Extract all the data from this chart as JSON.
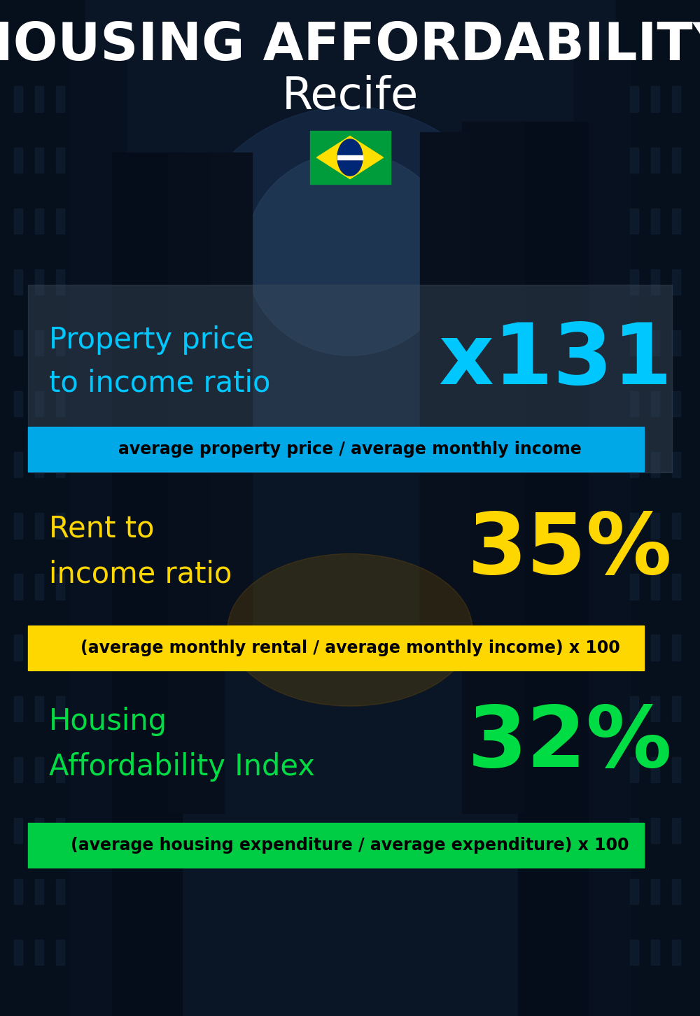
{
  "title_line1": "HOUSING AFFORDABILITY",
  "title_line2": "Recife",
  "bg_color": "#0a1525",
  "section1_label_line1": "Property price",
  "section1_label_line2": "to income ratio",
  "section1_value": "x131",
  "section1_label_color": "#00c8ff",
  "section1_value_color": "#00c8ff",
  "section1_banner_text": "average property price / average monthly income",
  "section1_banner_bg": "#00a8e8",
  "section1_banner_text_color": "#000000",
  "section2_label_line1": "Rent to",
  "section2_label_line2": "income ratio",
  "section2_value": "35%",
  "section2_label_color": "#ffd700",
  "section2_value_color": "#ffd700",
  "section2_banner_text": "(average monthly rental / average monthly income) x 100",
  "section2_banner_bg": "#ffd700",
  "section2_banner_text_color": "#000000",
  "section3_label_line1": "Housing",
  "section3_label_line2": "Affordability Index",
  "section3_value": "32%",
  "section3_label_color": "#00dd44",
  "section3_value_color": "#00dd44",
  "section3_banner_text": "(average housing expenditure / average expenditure) x 100",
  "section3_banner_bg": "#00cc44",
  "section3_banner_text_color": "#000000",
  "title_color": "#ffffff",
  "flag_green": "#009c3b",
  "flag_yellow": "#FFDF00",
  "flag_blue": "#002776"
}
